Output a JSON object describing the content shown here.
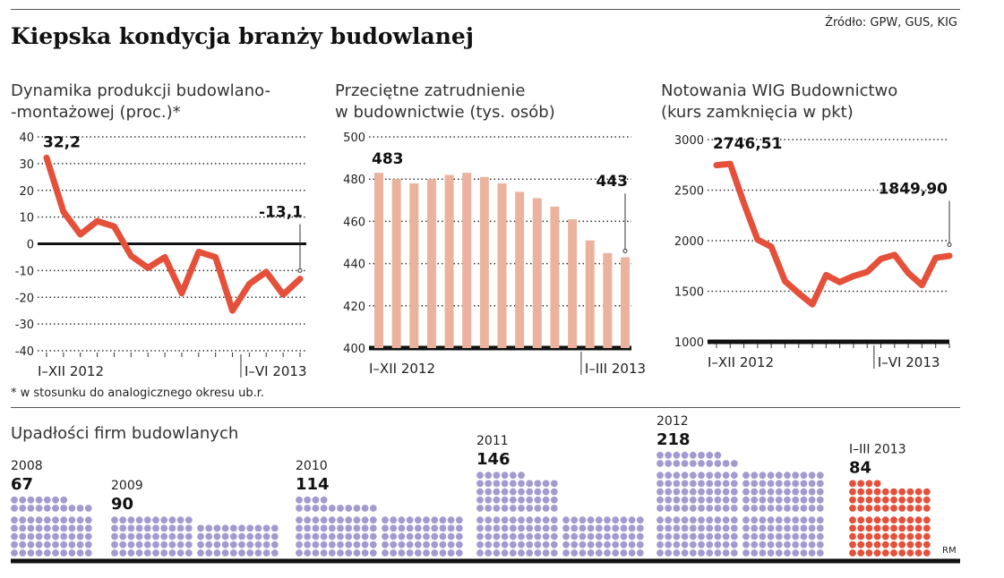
{
  "title": "Kiepska kondycja branży budowlanej",
  "source": "Źródło: GPW, GUS, KIG",
  "footnote": "* w stosunku do analogicznego okresu ub.r.",
  "credit": "RM",
  "colors": {
    "line": "#e4503a",
    "bars": "#ebb39e",
    "dots": "#a39ad0",
    "dots_highlight": "#e4503a"
  },
  "chart_data": [
    {
      "type": "line",
      "subtitle_lines": [
        "Dynamika produkcji budowlano-",
        "-montażowej (proc.)*"
      ],
      "ylim": [
        -40,
        40
      ],
      "yticks": [
        "40",
        "30",
        "20",
        "10",
        "0",
        "-10",
        "-20",
        "-30",
        "-40"
      ],
      "xlabels": [
        "I–XII 2012",
        "I–VI 2013"
      ],
      "values": [
        32.2,
        12,
        3.5,
        8.5,
        6.5,
        -4.5,
        -9,
        -5,
        -18.5,
        -3,
        -5,
        -25,
        -15,
        -10.5,
        -19,
        -13.1
      ],
      "first_label": "32,2",
      "last_label": "-13,1",
      "grid": true
    },
    {
      "type": "bar",
      "subtitle_lines": [
        "Przeciętne zatrudnienie",
        "w budownictwie (tys. osób)"
      ],
      "ylim": [
        400,
        500
      ],
      "yticks": [
        "500",
        "480",
        "460",
        "440",
        "420",
        "400"
      ],
      "xlabels": [
        "I–XII 2012",
        "I–III 2013"
      ],
      "values": [
        483,
        480,
        478,
        480,
        482,
        483,
        481,
        478,
        474,
        471,
        467,
        461,
        451,
        445,
        443
      ],
      "first_label": "483",
      "last_label": "443",
      "grid": true
    },
    {
      "type": "line",
      "subtitle_lines": [
        "Notowania WIG Budownictwo",
        "(kurs zamknięcia w pkt)"
      ],
      "ylim": [
        1000,
        3000
      ],
      "yticks": [
        "3000",
        "2500",
        "2000",
        "1500",
        "1000"
      ],
      "xlabels": [
        "I–XII 2012",
        "I–VI 2013"
      ],
      "values": [
        2746.51,
        2760,
        2370,
        2010,
        1940,
        1600,
        1480,
        1370,
        1660,
        1590,
        1650,
        1690,
        1820,
        1860,
        1680,
        1560,
        1830,
        1849.9
      ],
      "first_label": "2746,51",
      "last_label": "1849,90",
      "grid": true
    },
    {
      "type": "pictogram",
      "subtitle": "Upadłości firm budowlanych",
      "categories": [
        "2008",
        "2009",
        "2010",
        "2011",
        "2012",
        "I–III 2013"
      ],
      "values": [
        67,
        90,
        114,
        146,
        218,
        84
      ],
      "value_labels": [
        "67",
        "90",
        "114",
        "146",
        "218",
        "84"
      ],
      "highlight": "I–III 2013"
    }
  ]
}
